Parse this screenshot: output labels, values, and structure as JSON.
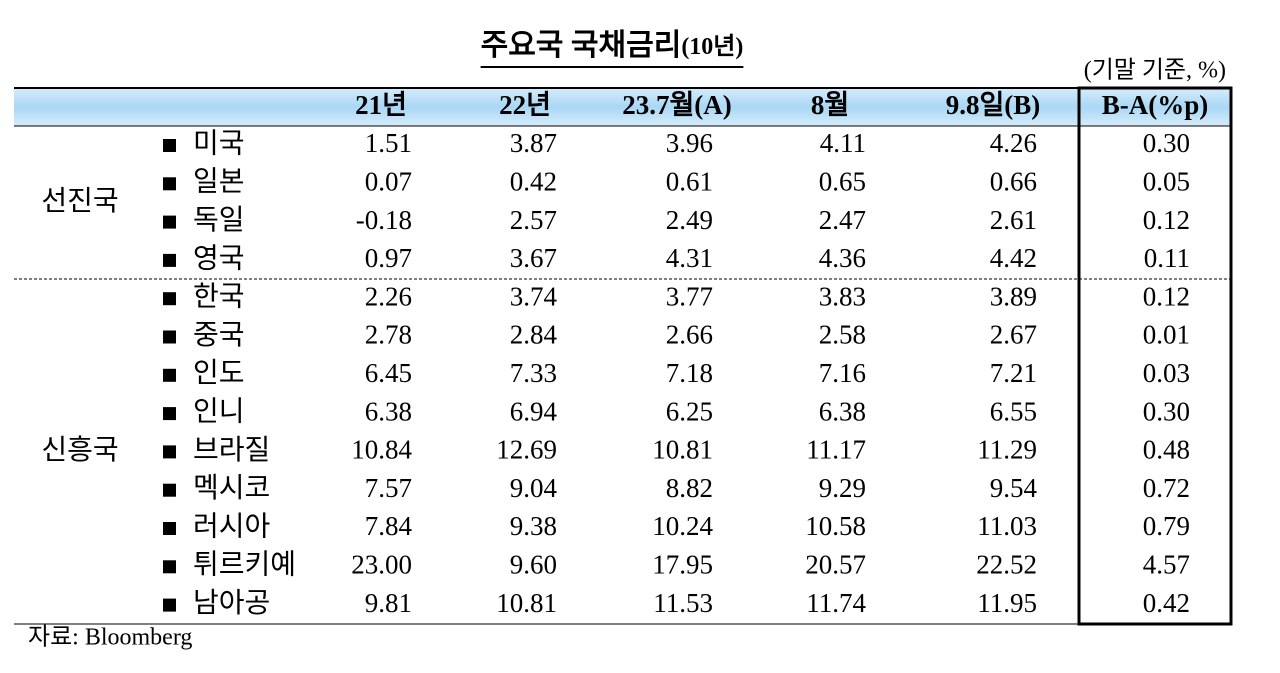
{
  "title": "주요국  국채금리",
  "title_suffix": "(10년)",
  "unit": "(기말 기준, %)",
  "table": {
    "header": [
      "21년",
      "22년",
      "23.7월(A)",
      "8월",
      "9.8일(B)",
      "B-A(%p)"
    ],
    "groups": [
      {
        "name": "선진국",
        "rows": [
          {
            "label": "미국",
            "values": [
              "1.51",
              "3.87",
              "3.96",
              "4.11",
              "4.26",
              "0.30"
            ]
          },
          {
            "label": "일본",
            "values": [
              "0.07",
              "0.42",
              "0.61",
              "0.65",
              "0.66",
              "0.05"
            ]
          },
          {
            "label": "독일",
            "values": [
              "-0.18",
              "2.57",
              "2.49",
              "2.47",
              "2.61",
              "0.12"
            ]
          },
          {
            "label": "영국",
            "values": [
              "0.97",
              "3.67",
              "4.31",
              "4.36",
              "4.42",
              "0.11"
            ]
          }
        ]
      },
      {
        "name": "신흥국",
        "rows": [
          {
            "label": "한국",
            "values": [
              "2.26",
              "3.74",
              "3.77",
              "3.83",
              "3.89",
              "0.12"
            ]
          },
          {
            "label": "중국",
            "values": [
              "2.78",
              "2.84",
              "2.66",
              "2.58",
              "2.67",
              "0.01"
            ]
          },
          {
            "label": "인도",
            "values": [
              "6.45",
              "7.33",
              "7.18",
              "7.16",
              "7.21",
              "0.03"
            ]
          },
          {
            "label": "인니",
            "values": [
              "6.38",
              "6.94",
              "6.25",
              "6.38",
              "6.55",
              "0.30"
            ]
          },
          {
            "label": "브라질",
            "values": [
              "10.84",
              "12.69",
              "10.81",
              "11.17",
              "11.29",
              "0.48"
            ]
          },
          {
            "label": "멕시코",
            "values": [
              "7.57",
              "9.04",
              "8.82",
              "9.29",
              "9.54",
              "0.72"
            ]
          },
          {
            "label": "러시아",
            "values": [
              "7.84",
              "9.38",
              "10.24",
              "10.58",
              "11.03",
              "0.79"
            ]
          },
          {
            "label": "튀르키예",
            "values": [
              "23.00",
              "9.60",
              "17.95",
              "20.57",
              "22.52",
              "4.57"
            ]
          },
          {
            "label": "남아공",
            "values": [
              "9.81",
              "10.81",
              "11.53",
              "11.74",
              "11.95",
              "0.42"
            ]
          }
        ]
      }
    ]
  },
  "source": "자료:  Bloomberg"
}
